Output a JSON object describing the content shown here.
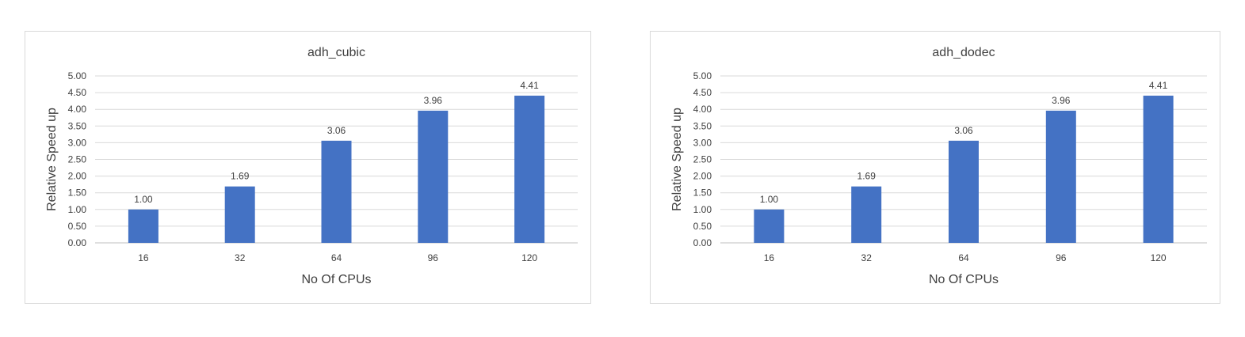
{
  "chart_data": [
    {
      "type": "bar",
      "title": "adh_cubic",
      "xlabel": "No Of CPUs",
      "ylabel": "Relative Speed up",
      "categories": [
        "16",
        "32",
        "64",
        "96",
        "120"
      ],
      "values": [
        1.0,
        1.69,
        3.06,
        3.96,
        4.41
      ],
      "value_labels": [
        "1.00",
        "1.69",
        "3.06",
        "3.96",
        "4.41"
      ],
      "ylim": [
        0,
        5
      ],
      "yticks": [
        "0.00",
        "0.50",
        "1.00",
        "1.50",
        "2.00",
        "2.50",
        "3.00",
        "3.50",
        "4.00",
        "4.50",
        "5.00"
      ],
      "grid": true,
      "legend": "none",
      "bar_color": "#4472c4"
    },
    {
      "type": "bar",
      "title": "adh_dodec",
      "xlabel": "No Of CPUs",
      "ylabel": "Relative Speed up",
      "categories": [
        "16",
        "32",
        "64",
        "96",
        "120"
      ],
      "values": [
        1.0,
        1.69,
        3.06,
        3.96,
        4.41
      ],
      "value_labels": [
        "1.00",
        "1.69",
        "3.06",
        "3.96",
        "4.41"
      ],
      "ylim": [
        0,
        5
      ],
      "yticks": [
        "0.00",
        "0.50",
        "1.00",
        "1.50",
        "2.00",
        "2.50",
        "3.00",
        "3.50",
        "4.00",
        "4.50",
        "5.00"
      ],
      "grid": true,
      "legend": "none",
      "bar_color": "#4472c4"
    }
  ]
}
